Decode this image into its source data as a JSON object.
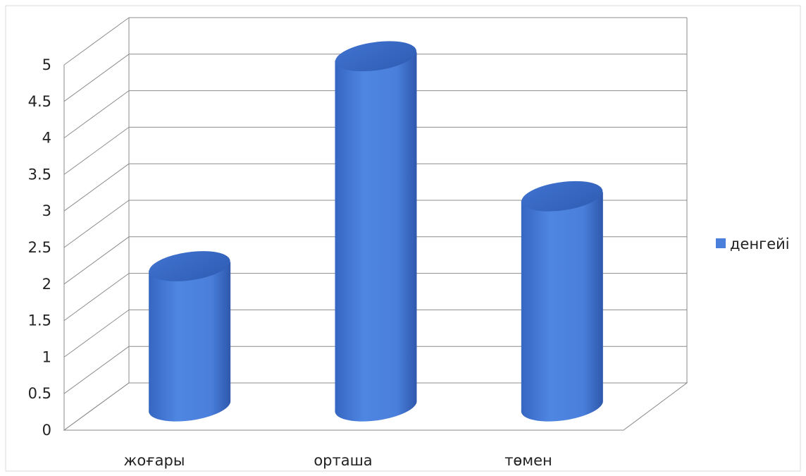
{
  "chart_data": {
    "type": "bar",
    "style": "3d-cylinder",
    "categories": [
      "жоғары",
      "орташа",
      "төмен"
    ],
    "series": [
      {
        "name": "денгейі",
        "values": [
          2,
          5,
          3
        ],
        "color": "#4A7FDB"
      }
    ],
    "ylim": [
      0,
      5
    ],
    "y_ticks": [
      "0",
      "0.5",
      "1",
      "1.5",
      "2",
      "2.5",
      "3",
      "3.5",
      "4",
      "4.5",
      "5"
    ],
    "grid": true,
    "legend_position": "right",
    "title": "",
    "xlabel": "",
    "ylabel": ""
  }
}
